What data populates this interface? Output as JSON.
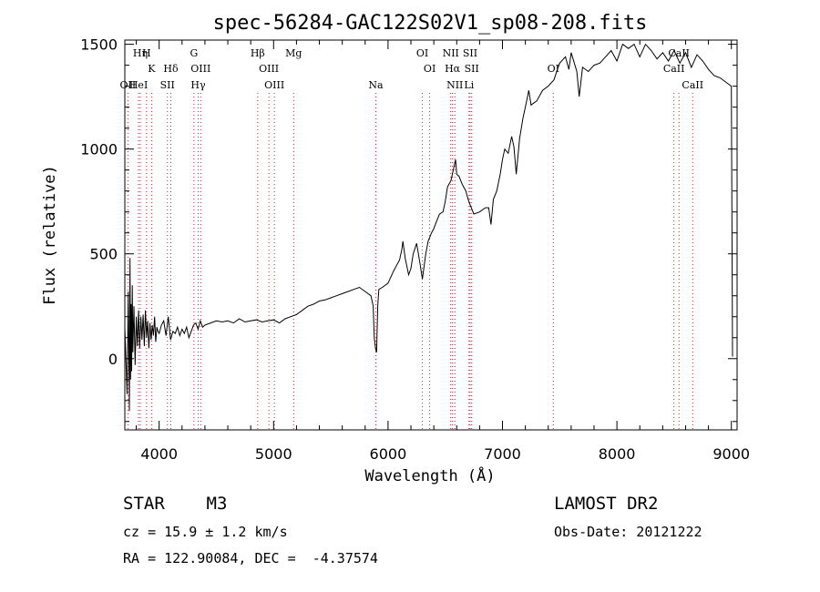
{
  "chart_data": {
    "type": "line",
    "title": "spec-56284-GAC122S02V1_sp08-208.fits",
    "xlabel": "Wavelength (Å)",
    "ylabel": "Flux (relative)",
    "xlim": [
      3700,
      9050
    ],
    "ylim": [
      -340,
      1520
    ],
    "xticks": [
      4000,
      5000,
      6000,
      7000,
      8000,
      9000
    ],
    "yticks": [
      0,
      500,
      1000,
      1500
    ],
    "series": [
      {
        "name": "flux",
        "x": [
          3700,
          3720,
          3730,
          3740,
          3745,
          3750,
          3755,
          3760,
          3765,
          3770,
          3780,
          3790,
          3800,
          3810,
          3820,
          3830,
          3840,
          3850,
          3860,
          3870,
          3880,
          3890,
          3900,
          3910,
          3920,
          3930,
          3940,
          3950,
          3960,
          3970,
          3980,
          3990,
          4000,
          4020,
          4040,
          4060,
          4080,
          4100,
          4120,
          4140,
          4160,
          4180,
          4200,
          4220,
          4240,
          4260,
          4280,
          4300,
          4320,
          4340,
          4360,
          4380,
          4400,
          4450,
          4500,
          4550,
          4600,
          4650,
          4700,
          4750,
          4800,
          4850,
          4900,
          4950,
          5000,
          5050,
          5100,
          5150,
          5200,
          5250,
          5300,
          5350,
          5400,
          5450,
          5500,
          5550,
          5600,
          5650,
          5700,
          5750,
          5800,
          5850,
          5870,
          5880,
          5890,
          5900,
          5910,
          5920,
          5950,
          6000,
          6050,
          6080,
          6100,
          6120,
          6130,
          6150,
          6180,
          6200,
          6220,
          6250,
          6280,
          6300,
          6330,
          6350,
          6380,
          6400,
          6420,
          6450,
          6480,
          6500,
          6520,
          6550,
          6570,
          6590,
          6600,
          6620,
          6650,
          6680,
          6700,
          6720,
          6750,
          6800,
          6850,
          6880,
          6900,
          6920,
          6950,
          6980,
          7000,
          7020,
          7050,
          7080,
          7100,
          7120,
          7150,
          7180,
          7200,
          7230,
          7250,
          7300,
          7350,
          7400,
          7450,
          7480,
          7500,
          7550,
          7580,
          7600,
          7650,
          7670,
          7700,
          7750,
          7800,
          7850,
          7900,
          7950,
          8000,
          8050,
          8100,
          8150,
          8200,
          8250,
          8300,
          8350,
          8400,
          8450,
          8500,
          8550,
          8600,
          8650,
          8700,
          8750,
          8800,
          8850,
          8900,
          8950,
          9000,
          9010
        ],
        "y": [
          150,
          -170,
          320,
          -250,
          480,
          -100,
          260,
          -60,
          350,
          30,
          250,
          -30,
          200,
          60,
          230,
          50,
          200,
          90,
          210,
          60,
          230,
          100,
          180,
          50,
          170,
          90,
          160,
          110,
          200,
          80,
          150,
          130,
          120,
          160,
          180,
          110,
          200,
          90,
          130,
          120,
          150,
          110,
          140,
          120,
          150,
          100,
          130,
          160,
          170,
          140,
          180,
          150,
          160,
          170,
          180,
          175,
          180,
          170,
          190,
          175,
          180,
          185,
          175,
          180,
          185,
          170,
          190,
          200,
          210,
          230,
          250,
          260,
          275,
          280,
          290,
          300,
          310,
          320,
          330,
          340,
          320,
          300,
          250,
          100,
          50,
          30,
          250,
          330,
          340,
          360,
          420,
          450,
          470,
          520,
          560,
          480,
          400,
          430,
          500,
          550,
          450,
          380,
          500,
          560,
          600,
          620,
          650,
          690,
          700,
          750,
          820,
          850,
          900,
          950,
          880,
          870,
          830,
          800,
          760,
          730,
          690,
          700,
          720,
          720,
          640,
          760,
          800,
          880,
          950,
          1000,
          980,
          1060,
          1010,
          880,
          1050,
          1150,
          1200,
          1280,
          1210,
          1230,
          1280,
          1300,
          1330,
          1380,
          1410,
          1440,
          1380,
          1460,
          1370,
          1250,
          1390,
          1370,
          1400,
          1410,
          1440,
          1470,
          1420,
          1500,
          1480,
          1500,
          1440,
          1500,
          1470,
          1430,
          1460,
          1420,
          1470,
          1410,
          1460,
          1390,
          1450,
          1420,
          1380,
          1350,
          1340,
          1320,
          1300,
          10
        ]
      }
    ],
    "lines": [
      {
        "label": "Hη",
        "wave": 3835,
        "row": 1
      },
      {
        "label": "H",
        "wave": 3889,
        "row": 1
      },
      {
        "label": "K",
        "wave": 3934,
        "row": 2
      },
      {
        "label": "Hδ",
        "wave": 4102,
        "row": 2
      },
      {
        "label": "OII",
        "wave": 3727,
        "row": 3
      },
      {
        "label": "HeI",
        "wave": 3820,
        "row": 3
      },
      {
        "label": "SII",
        "wave": 4072,
        "row": 3
      },
      {
        "label": "G",
        "wave": 4304,
        "row": 1
      },
      {
        "label": "OIII",
        "wave": 4363,
        "row": 2
      },
      {
        "label": "Hγ",
        "wave": 4341,
        "row": 3
      },
      {
        "label": "Hβ",
        "wave": 4861,
        "row": 1
      },
      {
        "label": "OIII",
        "wave": 4959,
        "row": 2
      },
      {
        "label": "OIII",
        "wave": 5007,
        "row": 3
      },
      {
        "label": "Mg",
        "wave": 5175,
        "row": 1
      },
      {
        "label": "Na",
        "wave": 5893,
        "row": 3
      },
      {
        "label": "OI",
        "wave": 6300,
        "row": 1
      },
      {
        "label": "OI",
        "wave": 6364,
        "row": 2
      },
      {
        "label": "NII",
        "wave": 6548,
        "row": 1
      },
      {
        "label": "SII",
        "wave": 6717,
        "row": 1
      },
      {
        "label": "Hα",
        "wave": 6563,
        "row": 2
      },
      {
        "label": "SII",
        "wave": 6731,
        "row": 2
      },
      {
        "label": "NII",
        "wave": 6584,
        "row": 3
      },
      {
        "label": "Li",
        "wave": 6708,
        "row": 3
      },
      {
        "label": "OI",
        "wave": 7444,
        "row": 2
      },
      {
        "label": "CaII",
        "wave": 8542,
        "row": 1
      },
      {
        "label": "CaII",
        "wave": 8498,
        "row": 2
      },
      {
        "label": "CaII",
        "wave": 8662,
        "row": 3
      }
    ],
    "grid": false,
    "legend": "none"
  },
  "info": {
    "class_line": "STAR    M3",
    "cz_line": "cz = 15.9 ± 1.2 km/s",
    "coords_line": "RA = 122.90084, DEC =  -4.37574",
    "survey": "LAMOST DR2",
    "obs_date": "Obs-Date: 20121222"
  },
  "colors": {
    "line": "#000000",
    "marker": "#cc2222"
  }
}
